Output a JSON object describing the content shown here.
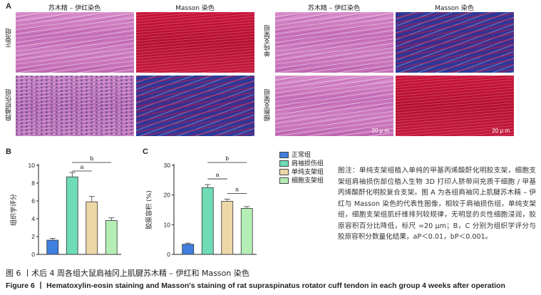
{
  "panel_labels": {
    "A": "A",
    "B": "B",
    "C": "C"
  },
  "column_titles": [
    "苏木精 – 伊红染色",
    "Masson 染色",
    "苏木精 – 伊红染色",
    "Masson 染色"
  ],
  "row_labels": [
    "正常组",
    "肩袖损伤组",
    "单纯支架组",
    "细胞支架组"
  ],
  "scale_bar_text": "20 μ m",
  "legend": [
    {
      "label": "正常组",
      "color": "#3f7fe0"
    },
    {
      "label": "肩袖损伤组",
      "color": "#6edcb4"
    },
    {
      "label": "单纯支架组",
      "color": "#ecd7a6"
    },
    {
      "label": "细胞支架组",
      "color": "#b4eeb4"
    }
  ],
  "note": "图注：单纯支架组植入单纯的甲基丙烯酸酐化明胶支架，细胞支架组肩袖损伤部位植入生物 3D 打印人脐带间充质干细胞 / 甲基丙烯酸酐化明胶复合支架。图 A 为各组肩袖冈上肌腱苏木精 – 伊红与 Masson 染色的代表性图像，相较于肩袖损伤组，单纯支架组，细胞支架组肌纤维排列较规律，无明显的炎性细胞浸润，胶原容积百分比降低，标尺 =20 μm；B，C 分别为组织学评分与胶原容积分数量化结果，aP＜0.01，bP＜0.001。",
  "caption_zh": "图 6 丨术后 4 周各组大鼠肩袖冈上肌腱苏木精 – 伊红和 Masson 染色",
  "caption_en": "Figure 6 丨 Hematoxylin-eosin staining and Masson's staining of rat supraspinatus rotator cuff tendon in each group 4 weeks after operation",
  "chart_data": [
    {
      "type": "bar",
      "panel": "B",
      "categories": [
        "正常组",
        "肩袖损伤组",
        "单纯支架组",
        "细胞支架组"
      ],
      "values": [
        1.6,
        8.7,
        5.9,
        3.8
      ],
      "errors": [
        0.2,
        0.5,
        0.6,
        0.3
      ],
      "colors": [
        "#3f7fe0",
        "#6edcb4",
        "#ecd7a6",
        "#b4eeb4"
      ],
      "ylabel": "组织学评分",
      "ylim": [
        0,
        10
      ],
      "yticks": [
        0,
        2,
        4,
        6,
        8,
        10
      ],
      "significance": [
        {
          "from": 1,
          "to": 2,
          "label": "a"
        },
        {
          "from": 1,
          "to": 3,
          "label": "b"
        }
      ]
    },
    {
      "type": "bar",
      "panel": "C",
      "categories": [
        "正常组",
        "肩袖损伤组",
        "单纯支架组",
        "细胞支架组"
      ],
      "values": [
        3.4,
        22.5,
        17.9,
        15.5
      ],
      "errors": [
        0.4,
        1.0,
        0.7,
        0.6
      ],
      "colors": [
        "#3f7fe0",
        "#6edcb4",
        "#ecd7a6",
        "#b4eeb4"
      ],
      "ylabel": "胶原容积 (%)",
      "ylim": [
        0,
        30
      ],
      "yticks": [
        0,
        10,
        20,
        30
      ],
      "significance": [
        {
          "from": 1,
          "to": 2,
          "label": "a"
        },
        {
          "from": 2,
          "to": 3,
          "label": "a"
        },
        {
          "from": 1,
          "to": 3,
          "label": "b"
        }
      ]
    }
  ]
}
